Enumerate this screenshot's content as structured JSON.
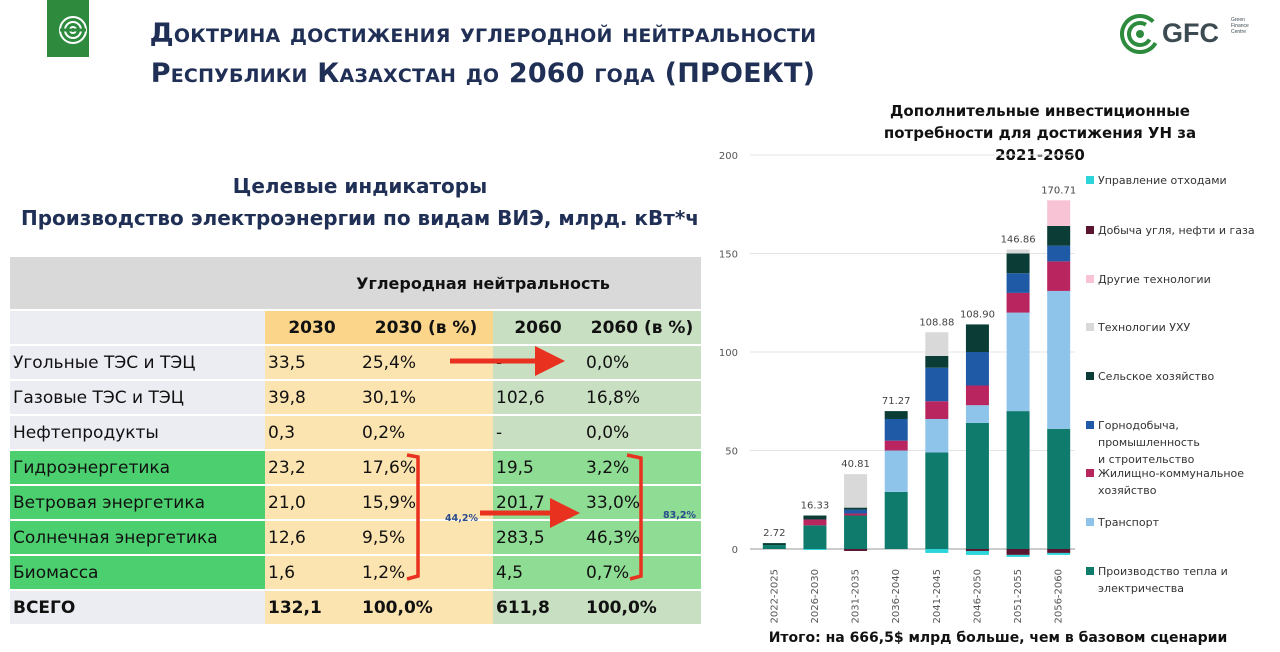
{
  "header": {
    "title_line1": "Доктрина достижения углеродной нейтральности",
    "title_line2": "Республики Казахстан до 2060 года (ПРОЕКТ)",
    "logo_text": "GFC",
    "logo_sub": [
      "Green",
      "Finance",
      "Centre"
    ]
  },
  "indicators": {
    "heading1": "Целевые индикаторы",
    "heading2": "Производство электроэнергии по видам ВИЭ, млрд. кВт*ч",
    "group_header": "Углеродная нейтральность",
    "col_headers": [
      "2030",
      "2030 (в %)",
      "2060",
      "2060 (в %)"
    ],
    "rows": [
      {
        "name": "Угольные ТЭС и ТЭЦ",
        "v2030": "33,5",
        "p2030": "25,4%",
        "v2060": "-",
        "p2060": "0,0%"
      },
      {
        "name": "Газовые ТЭС и ТЭЦ",
        "v2030": "39,8",
        "p2030": "30,1%",
        "v2060": "102,6",
        "p2060": "16,8%"
      },
      {
        "name": "Нефтепродукты",
        "v2030": "0,3",
        "p2030": "0,2%",
        "v2060": "-",
        "p2060": "0,0%"
      },
      {
        "name": "Гидроэнергетика",
        "v2030": "23,2",
        "p2030": "17,6%",
        "v2060": "19,5",
        "p2060": "3,2%"
      },
      {
        "name": "Ветровая энергетика",
        "v2030": "21,0",
        "p2030": "15,9%",
        "v2060": "201,7",
        "p2060": "33,0%"
      },
      {
        "name": "Солнечная энергетика",
        "v2030": "12,6",
        "p2030": "9,5%",
        "v2060": "283,5",
        "p2060": "46,3%"
      },
      {
        "name": "Биомасса",
        "v2030": "1,6",
        "p2030": "1,2%",
        "v2060": "4,5",
        "p2060": "0,7%"
      }
    ],
    "total": {
      "name": "ВСЕГО",
      "v2030": "132,1",
      "p2030": "100,0%",
      "v2060": "611,8",
      "p2060": "100,0%"
    },
    "bracket_2030": "44,2%",
    "bracket_2060": "83,2%"
  },
  "chart_title": "Дополнительные инвестиционные потребности для достижения УН за 2021-2060",
  "total_note": "Итого: на 666,5$ млрд больше, чем в базовом сценарии",
  "chart_data": {
    "type": "bar",
    "stacked": true,
    "categories": [
      "2022-2025",
      "2026-2030",
      "2031-2035",
      "2036-2040",
      "2041-2045",
      "2046-2050",
      "2051-2055",
      "2056-2060"
    ],
    "totals": [
      "2.72",
      "16.33",
      "40.81",
      "71.27",
      "108.88",
      "108.90",
      "146.86",
      "170.71"
    ],
    "ylim": [
      0,
      200
    ],
    "yticks": [
      0,
      50,
      100,
      150,
      200
    ],
    "grid": true,
    "legend_position": "right",
    "series": [
      {
        "name": "Производство тепла и электричества",
        "color": "#0f7b6c",
        "values": [
          2,
          12,
          17,
          29,
          49,
          64,
          70,
          61
        ]
      },
      {
        "name": "Транспорт",
        "color": "#8ec4ea",
        "values": [
          0,
          0,
          0,
          21,
          17,
          9,
          50,
          70
        ]
      },
      {
        "name": "Жилищно-коммунальное хозяйство",
        "color": "#b8255f",
        "values": [
          0,
          3,
          1,
          5,
          9,
          10,
          10,
          15
        ]
      },
      {
        "name": "Горнодобыча, промышленность и строительство",
        "color": "#1f5aa6",
        "values": [
          0,
          0,
          2,
          11,
          17,
          17,
          10,
          8
        ]
      },
      {
        "name": "Сельское хозяйство",
        "color": "#0b3d36",
        "values": [
          1,
          2,
          1,
          4,
          6,
          14,
          10,
          10
        ]
      },
      {
        "name": "Технологии УХУ",
        "color": "#d9d9d9",
        "values": [
          0,
          0,
          17,
          0,
          12,
          0,
          2,
          0
        ]
      },
      {
        "name": "Другие технологии",
        "color": "#f8c3d5",
        "values": [
          0,
          0,
          0,
          0,
          0,
          0,
          0,
          13
        ]
      },
      {
        "name": "Добыча угля, нефти и газа",
        "color": "#5a1630",
        "values": [
          0,
          0,
          -1,
          0,
          0,
          -1,
          -3,
          -2
        ]
      },
      {
        "name": "Управление отходами",
        "color": "#2bd5da",
        "values": [
          0,
          -0.5,
          0,
          0,
          -2,
          -2,
          -1,
          -1
        ]
      }
    ],
    "legend_order": [
      "Управление отходами",
      "Добыча угля, нефти и газа",
      "Другие технологии",
      "Технологии УХУ",
      "Сельское хозяйство",
      "Горнодобыча, промышленность и строительство",
      "Жилищно-коммунальное хозяйство",
      "Транспорт",
      "Производство тепла и электричества"
    ]
  }
}
